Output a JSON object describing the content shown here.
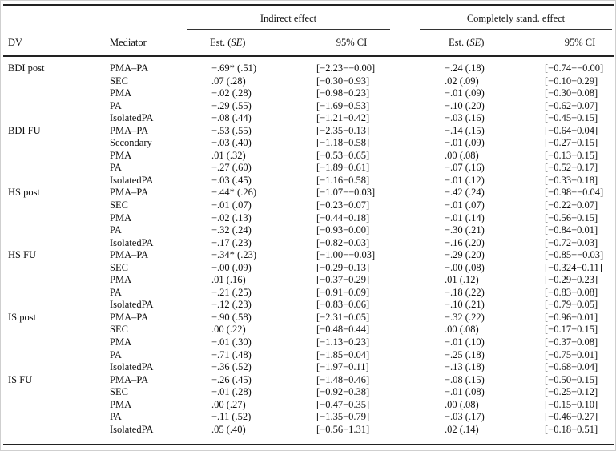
{
  "header": {
    "indirect_effect": "Indirect effect",
    "standardized_effect": "Completely stand. effect",
    "dv": "DV",
    "mediator": "Mediator",
    "est_se_1": "Est. (SE)",
    "ci_1": "95% CI",
    "est_se_2": "Est. (SE)",
    "ci_2": "95% CI"
  },
  "groups": [
    {
      "dv": "BDI post",
      "rows": [
        {
          "mediator": "PMA–PA",
          "est1": "−.69* (.51)",
          "ci1": "[−2.23−−0.00]",
          "est2": "−.24 (.18)",
          "ci2": "[−0.74−−0.00]"
        },
        {
          "mediator": "SEC",
          "est1": ".07 (.28)",
          "ci1": "[−0.30−0.93]",
          "est2": ".02 (.09)",
          "ci2": "[−0.10−0.29]"
        },
        {
          "mediator": "PMA",
          "est1": "−.02 (.28)",
          "ci1": "[−0.98−0.23]",
          "est2": "−.01 (.09)",
          "ci2": "[−0.30−0.08]"
        },
        {
          "mediator": "PA",
          "est1": "−.29 (.55)",
          "ci1": "[−1.69−0.53]",
          "est2": "−.10 (.20)",
          "ci2": "[−0.62−0.07]"
        },
        {
          "mediator": "IsolatedPA",
          "est1": "−.08 (.44)",
          "ci1": "[−1.21−0.42]",
          "est2": "−.03 (.16)",
          "ci2": "[−0.45−0.15]"
        }
      ]
    },
    {
      "dv": "BDI FU",
      "rows": [
        {
          "mediator": "PMA–PA",
          "est1": "−.53 (.55)",
          "ci1": "[−2.35−0.13]",
          "est2": "−.14 (.15)",
          "ci2": "[−0.64−0.04]"
        },
        {
          "mediator": "Secondary",
          "est1": "−.03 (.40)",
          "ci1": "[−1.18−0.58]",
          "est2": "−.01 (.09)",
          "ci2": "[−0.27−0.15]"
        },
        {
          "mediator": "PMA",
          "est1": ".01 (.32)",
          "ci1": "[−0.53−0.65]",
          "est2": ".00 (.08)",
          "ci2": "[−0.13−0.15]"
        },
        {
          "mediator": "PA",
          "est1": "−.27 (.60)",
          "ci1": "[−1.89−0.61]",
          "est2": "−.07 (.16)",
          "ci2": "[−0.52−0.17]"
        },
        {
          "mediator": "IsolatedPA",
          "est1": "−.03 (.45)",
          "ci1": "[−1.16−0.58]",
          "est2": "−.01 (.12)",
          "ci2": "[−0.33−0.18]"
        }
      ]
    },
    {
      "dv": "HS post",
      "rows": [
        {
          "mediator": "PMA–PA",
          "est1": "−.44* (.26)",
          "ci1": "[−1.07−−0.03]",
          "est2": "−.42 (.24)",
          "ci2": "[−0.98−−0.04]"
        },
        {
          "mediator": "SEC",
          "est1": "−.01 (.07)",
          "ci1": "[−0.23−0.07]",
          "est2": "−.01 (.07)",
          "ci2": "[−0.22−0.07]"
        },
        {
          "mediator": "PMA",
          "est1": "−.02 (.13)",
          "ci1": "[−0.44−0.18]",
          "est2": "−.01 (.14)",
          "ci2": "[−0.56−0.15]"
        },
        {
          "mediator": "PA",
          "est1": "−.32 (.24)",
          "ci1": "[−0.93−0.00]",
          "est2": "−.30 (.21)",
          "ci2": "[−0.84−0.01]"
        },
        {
          "mediator": "IsolatedPA",
          "est1": "−.17 (.23)",
          "ci1": "[−0.82−0.03]",
          "est2": "−.16 (.20)",
          "ci2": "[−0.72−0.03]"
        }
      ]
    },
    {
      "dv": "HS FU",
      "rows": [
        {
          "mediator": "PMA–PA",
          "est1": "−.34* (.23)",
          "ci1": "[−1.00−−0.03]",
          "est2": "−.29 (.20)",
          "ci2": "[−0.85−−0.03]"
        },
        {
          "mediator": "SEC",
          "est1": "−.00 (.09)",
          "ci1": "[−0.29−0.13]",
          "est2": "−.00 (.08)",
          "ci2": "[−0.324−0.11]"
        },
        {
          "mediator": "PMA",
          "est1": ".01 (.16)",
          "ci1": "[−0.37−0.29]",
          "est2": ".01 (.12)",
          "ci2": "[−0.29−0.23]"
        },
        {
          "mediator": "PA",
          "est1": "−.21 (.25)",
          "ci1": "[−0.91−0.09]",
          "est2": "−.18 (.22)",
          "ci2": "[−0.83−0.08]"
        },
        {
          "mediator": "IsolatedPA",
          "est1": "−.12 (.23)",
          "ci1": "[−0.83−0.06]",
          "est2": "−.10 (.21)",
          "ci2": "[−0.79−0.05]"
        }
      ]
    },
    {
      "dv": "IS post",
      "rows": [
        {
          "mediator": "PMA–PA",
          "est1": "−.90 (.58)",
          "ci1": "[−2.31−0.05]",
          "est2": "−.32 (.22)",
          "ci2": "[−0.96−0.01]"
        },
        {
          "mediator": "SEC",
          "est1": ".00 (.22)",
          "ci1": "[−0.48−0.44]",
          "est2": ".00 (.08)",
          "ci2": "[−0.17−0.15]"
        },
        {
          "mediator": "PMA",
          "est1": "−.01 (.30)",
          "ci1": "[−1.13−0.23]",
          "est2": "−.01 (.10)",
          "ci2": "[−0.37−0.08]"
        },
        {
          "mediator": "PA",
          "est1": "−.71 (.48)",
          "ci1": "[−1.85−0.04]",
          "est2": "−.25 (.18)",
          "ci2": "[−0.75−0.01]"
        },
        {
          "mediator": "IsolatedPA",
          "est1": "−.36 (.52)",
          "ci1": "[−1.97−0.11]",
          "est2": "−.13 (.18)",
          "ci2": "[−0.68−0.04]"
        }
      ]
    },
    {
      "dv": "IS FU",
      "rows": [
        {
          "mediator": "PMA–PA",
          "est1": "−.26 (.45)",
          "ci1": "[−1.48−0.46]",
          "est2": "−.08 (.15)",
          "ci2": "[−0.50−0.15]"
        },
        {
          "mediator": "SEC",
          "est1": "−.01 (.28)",
          "ci1": "[−0.92−0.38]",
          "est2": "−.01 (.08)",
          "ci2": "[−0.25−0.12]"
        },
        {
          "mediator": "PMA",
          "est1": ".00 (.27)",
          "ci1": "[−0.47−0.35]",
          "est2": ".00 (.08)",
          "ci2": "[−0.15−0.10]"
        },
        {
          "mediator": "PA",
          "est1": "−.11 (.52)",
          "ci1": "[−1.35−0.79]",
          "est2": "−.03 (.17)",
          "ci2": "[−0.46−0.27]"
        },
        {
          "mediator": "IsolatedPA",
          "est1": ".05 (.40)",
          "ci1": "[−0.56−1.31]",
          "est2": ".02 (.14)",
          "ci2": "[−0.18−0.51]"
        }
      ]
    }
  ]
}
